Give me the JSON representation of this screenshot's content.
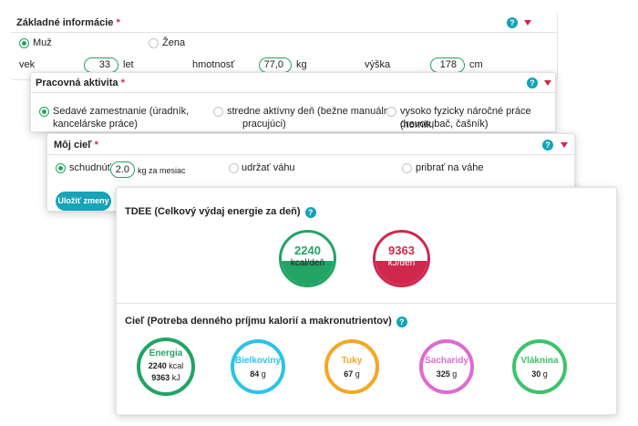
{
  "basic": {
    "title": "Základné informácie",
    "required_mark": "*",
    "help_glyph": "?",
    "gender_male": "Muž",
    "gender_female": "Žena",
    "age_label": "vek",
    "age_value": "33",
    "age_unit": "let",
    "weight_label": "hmotnosť",
    "weight_value": "77,0",
    "weight_unit": "kg",
    "height_label": "výška",
    "height_value": "178",
    "height_unit": "cm"
  },
  "activity": {
    "title": "Pracovná aktivita",
    "required_mark": "*",
    "help_glyph": "?",
    "options": [
      {
        "line1": "Sedavé zamestnanie (úradník,",
        "line2": "kancelárske práce)",
        "selected": true
      },
      {
        "line1": "stredne aktívny deň (bežne manuálne",
        "line2": "pracujúci)",
        "selected": false
      },
      {
        "line1": "vysoko fyzicky náročné práce (horník,",
        "line2": "drevorubač, čašník)",
        "selected": false
      }
    ]
  },
  "goal": {
    "title": "Môj cieľ",
    "required_mark": "*",
    "help_glyph": "?",
    "lose_label": "schudnúť",
    "lose_value": "2.0",
    "lose_unit": "kg za mesiac",
    "keep_label": "udržať váhu",
    "gain_label": "pribrať na váhe",
    "save_label": "Uložiť zmeny"
  },
  "results": {
    "tdee_title": "TDEE (Celkový výdaj energie za deň)",
    "help_glyph": "?",
    "kcal_value": "2240",
    "kcal_unit": "kcal/deň",
    "kj_value": "9363",
    "kj_unit": "kJ/deň",
    "target_title": "Cieľ (Potreba denného príjmu kalorií a makronutrientov)",
    "energy_label": "Energia",
    "energy_kcal_value": "2240",
    "energy_kcal_unit": "kcal",
    "energy_kj_value": "9363",
    "energy_kj_unit": "kJ",
    "protein_label": "Bielkoviny",
    "protein_value": "84",
    "protein_unit": "g",
    "fat_label": "Tuky",
    "fat_value": "67",
    "fat_unit": "g",
    "carbs_label": "Sacharidy",
    "carbs_value": "325",
    "carbs_unit": "g",
    "fiber_label": "Vláknina",
    "fiber_value": "30",
    "fiber_unit": "g"
  },
  "colors": {
    "accent_green": "#21a464",
    "accent_pink": "#d0284d",
    "teal": "#17a3b8",
    "protein": "#2bc4e8",
    "fat": "#f5a623",
    "carbs": "#e06ad0",
    "fiber": "#3cc46c"
  },
  "icons": [
    "help-icon",
    "caret-down-icon",
    "radio-icon"
  ]
}
